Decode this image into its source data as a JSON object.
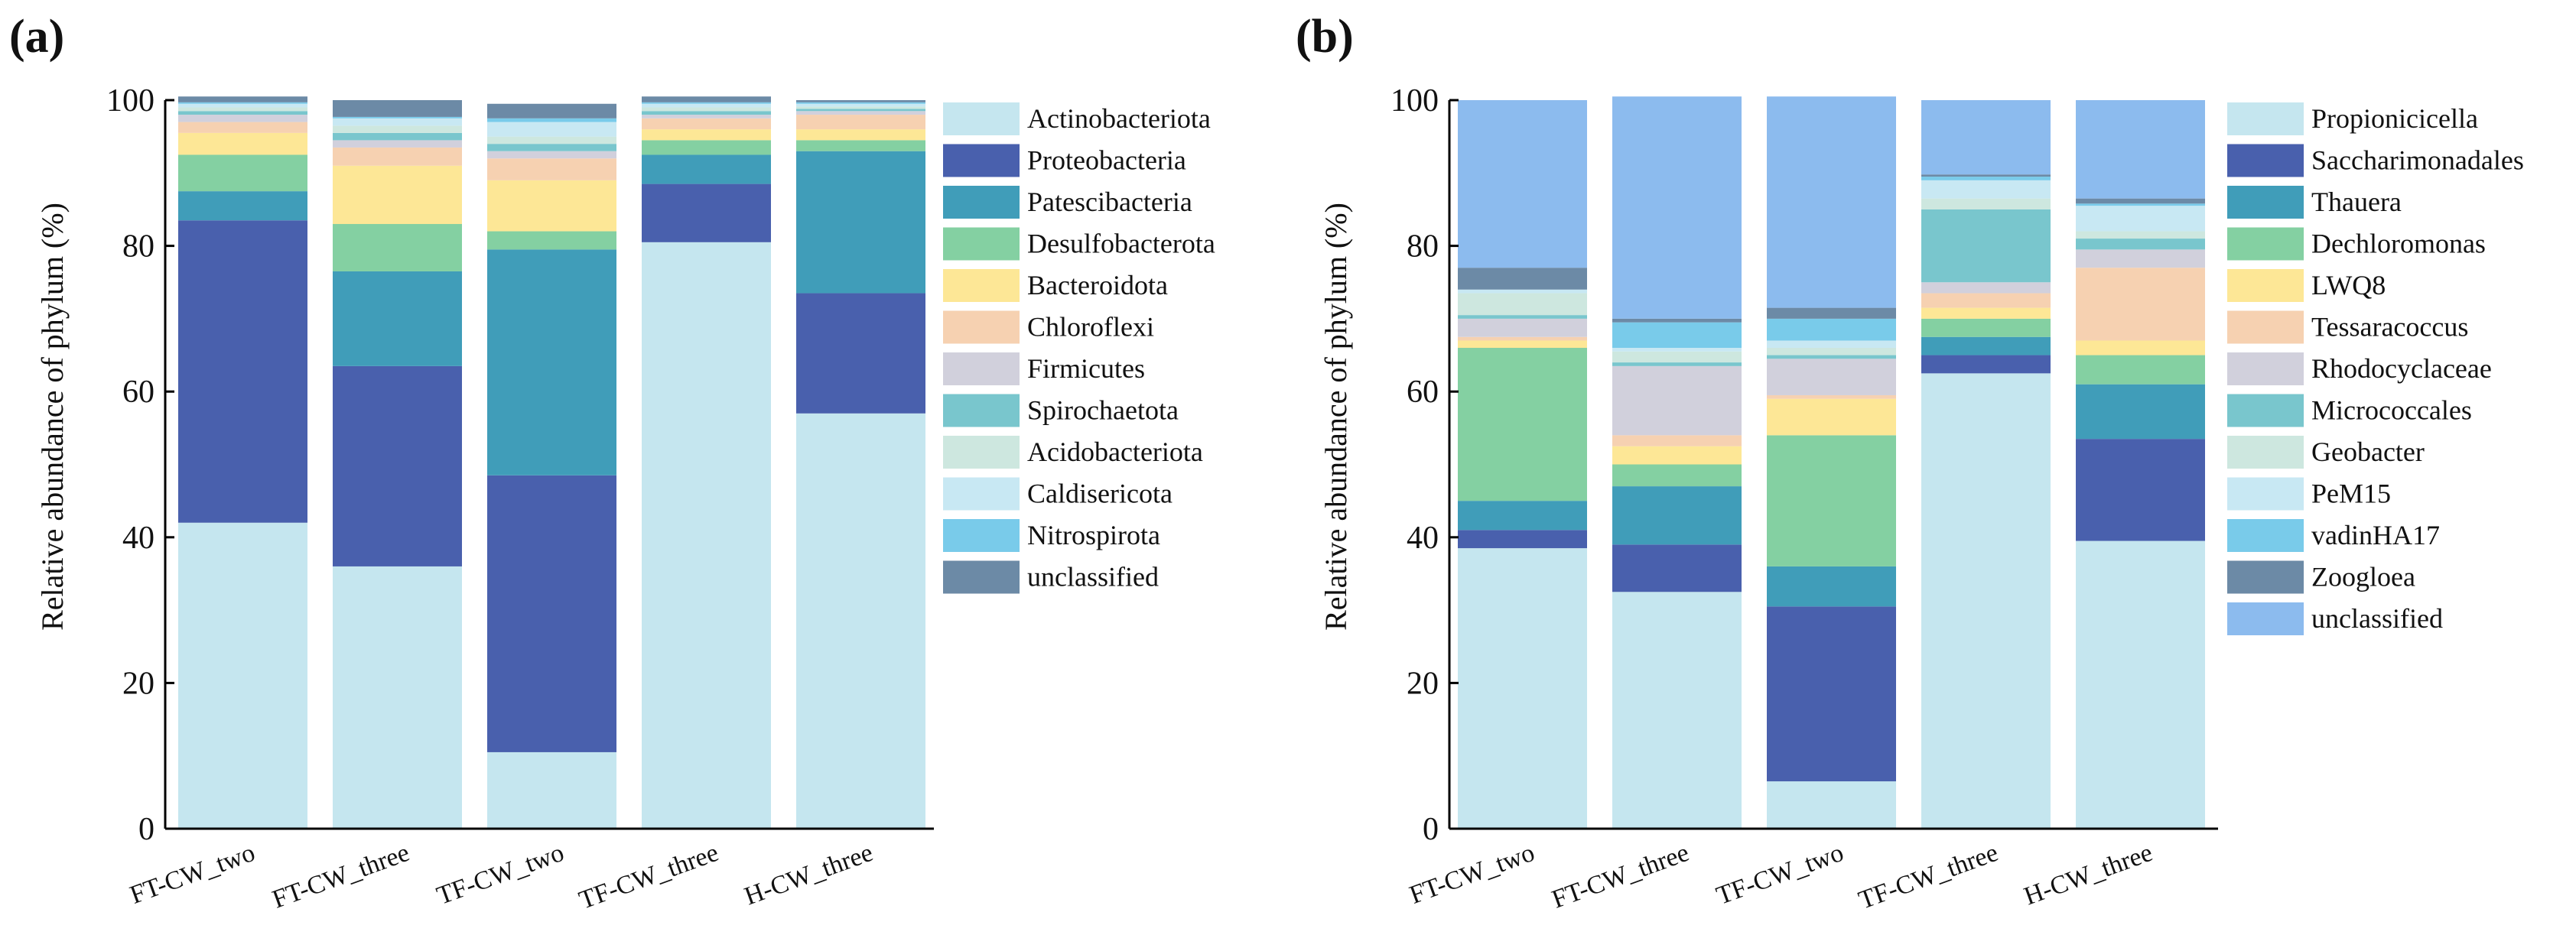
{
  "chart_data": [
    {
      "panel_label": "(a)",
      "type": "bar",
      "stacked": true,
      "ylabel": "Relative abundance of phylum (%)",
      "ylim": [
        0,
        100
      ],
      "yticks": [
        "0",
        "20",
        "40",
        "60",
        "80",
        "100"
      ],
      "categories": [
        "FT-CW_two",
        "FT-CW_three",
        "TF-CW_two",
        "TF-CW_three",
        "H-CW_three"
      ],
      "series": [
        {
          "name": "Actinobacteriota",
          "color": "#c5e6ef",
          "values": [
            42,
            36,
            10.5,
            80.5,
            57
          ]
        },
        {
          "name": "Proteobacteria",
          "color": "#4960ad",
          "values": [
            41.5,
            27.5,
            38,
            8,
            16.5
          ]
        },
        {
          "name": "Patescibacteria",
          "color": "#409db9",
          "values": [
            4,
            13,
            31,
            4,
            19.5
          ]
        },
        {
          "name": "Desulfobacterota",
          "color": "#84d0a2",
          "values": [
            5,
            6.5,
            2.5,
            2,
            1.5
          ]
        },
        {
          "name": "Bacteroidota",
          "color": "#fde796",
          "values": [
            3,
            8,
            7,
            1.5,
            1.5
          ]
        },
        {
          "name": "Chloroflexi",
          "color": "#f6d1b1",
          "values": [
            1.5,
            2.5,
            3,
            1.5,
            2
          ]
        },
        {
          "name": "Firmicutes",
          "color": "#d1d0dc",
          "values": [
            1,
            1,
            1,
            0.5,
            0.5
          ]
        },
        {
          "name": "Spirochaetota",
          "color": "#79c6cd",
          "values": [
            0.5,
            1,
            1,
            0.5,
            0.3
          ]
        },
        {
          "name": "Acidobacteriota",
          "color": "#cde7df",
          "values": [
            0.5,
            1,
            1,
            0.5,
            0.3
          ]
        },
        {
          "name": "Caldisericota",
          "color": "#c8e8f3",
          "values": [
            0.5,
            1,
            2,
            0.5,
            0.4
          ]
        },
        {
          "name": "Nitrospirota",
          "color": "#79cbea",
          "values": [
            0.2,
            0.2,
            0.5,
            0.2,
            0.2
          ]
        },
        {
          "name": "unclassified",
          "color": "#6c8aa6",
          "values": [
            0.8,
            2.3,
            2,
            0.8,
            0.3
          ]
        }
      ]
    },
    {
      "panel_label": "(b)",
      "type": "bar",
      "stacked": true,
      "ylabel": "Relative abundance of phylum (%)",
      "ylim": [
        0,
        100
      ],
      "yticks": [
        "0",
        "20",
        "40",
        "60",
        "80",
        "100"
      ],
      "categories": [
        "FT-CW_two",
        "FT-CW_three",
        "TF-CW_two",
        "TF-CW_three",
        "H-CW_three"
      ],
      "series": [
        {
          "name": "Propionicicella",
          "color": "#c5e6ef",
          "values": [
            38.5,
            32.5,
            6.5,
            62.5,
            39.5
          ]
        },
        {
          "name": "Saccharimonadales",
          "color": "#4960ad",
          "values": [
            2.5,
            6.5,
            24,
            2.5,
            14
          ]
        },
        {
          "name": "Thauera",
          "color": "#409db9",
          "values": [
            4,
            8,
            5.5,
            2.5,
            7.5
          ]
        },
        {
          "name": "Dechloromonas",
          "color": "#84d0a2",
          "values": [
            21,
            3,
            18,
            2.5,
            4
          ]
        },
        {
          "name": "LWQ8",
          "color": "#fde796",
          "values": [
            1,
            2.5,
            5,
            1.5,
            2
          ]
        },
        {
          "name": "Tessaracoccus",
          "color": "#f6d1b1",
          "values": [
            0.5,
            1.5,
            0.5,
            2,
            10
          ]
        },
        {
          "name": "Rhodocyclaceae",
          "color": "#d1d0dc",
          "values": [
            2.5,
            9.5,
            5,
            1.5,
            2.5
          ]
        },
        {
          "name": "Micrococcales",
          "color": "#79c6cd",
          "values": [
            0.5,
            0.5,
            0.5,
            10,
            1.5
          ]
        },
        {
          "name": "Geobacter",
          "color": "#cde7df",
          "values": [
            3,
            1.5,
            1,
            1.5,
            1
          ]
        },
        {
          "name": "PeM15",
          "color": "#c8e8f3",
          "values": [
            0.5,
            0.5,
            1,
            2.5,
            3.5
          ]
        },
        {
          "name": "vadinHA17",
          "color": "#79cbea",
          "values": [
            0,
            3.5,
            3,
            0.5,
            0.3
          ]
        },
        {
          "name": "Zoogloea",
          "color": "#6c8aa6",
          "values": [
            3,
            0.5,
            1.5,
            0.3,
            0.7
          ]
        },
        {
          "name": "unclassified",
          "color": "#8cbbee",
          "values": [
            23,
            30.5,
            29,
            10.2,
            13.5
          ]
        }
      ]
    }
  ]
}
